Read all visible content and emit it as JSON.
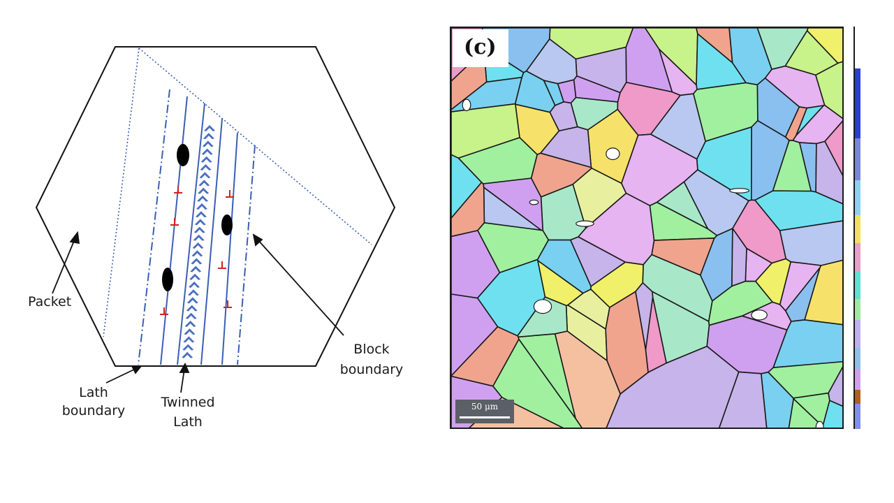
{
  "schematic": {
    "labels": {
      "packet": "Packet",
      "lath_boundary": [
        "Lath",
        "boundary"
      ],
      "twinned_lath": [
        "Twinned",
        "Lath"
      ],
      "block_boundary": [
        "Block",
        "boundary"
      ]
    },
    "colors": {
      "outline": "#111111",
      "lath_line": "#3a5fb3",
      "twin_mark": "#4a6fc0",
      "dislocation": "#d42020",
      "precipitate": "#000000"
    }
  },
  "micrograph": {
    "panel_label": "(c)",
    "scale_bar": "50 μm",
    "colors": {
      "grain_palette": [
        "#c6b4ea",
        "#b9c8f0",
        "#ef9ac8",
        "#6fe0f0",
        "#c8f28a",
        "#f6e26a",
        "#f0a48e",
        "#a8e8c8",
        "#e6b4f0",
        "#8ac0f0",
        "#f0f06a",
        "#a0f0a0",
        "#f5c0a0",
        "#d0a0f0",
        "#7ad0f0",
        "#e8f0a0"
      ],
      "boundary": "#1a1a1a"
    }
  }
}
